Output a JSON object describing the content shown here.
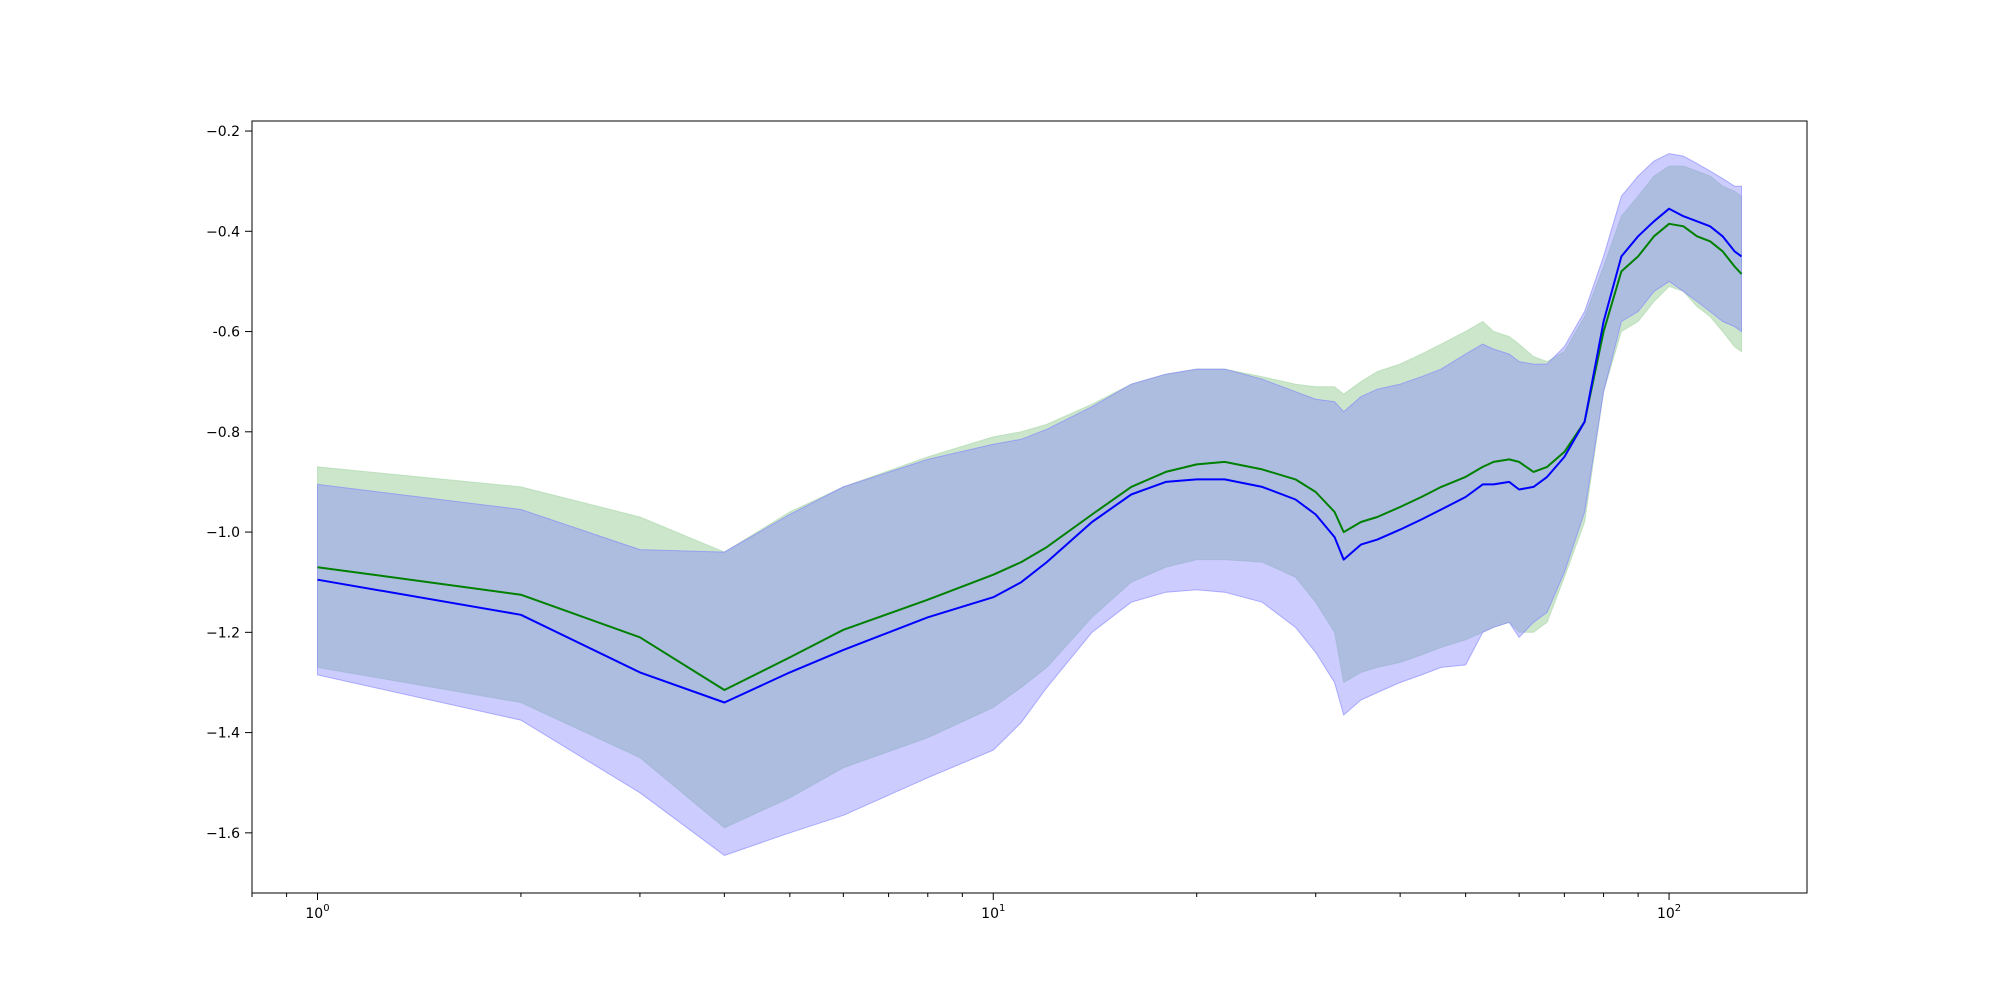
{
  "chart_data": {
    "type": "line",
    "title": "",
    "xlabel": "",
    "ylabel": "",
    "x_scale": "log",
    "xlim": [
      0.8,
      160
    ],
    "ylim": [
      -1.72,
      -0.18
    ],
    "grid": false,
    "x_ticks": [
      {
        "value": 1,
        "base": "10",
        "exp": "0"
      },
      {
        "value": 10,
        "base": "10",
        "exp": "1"
      },
      {
        "value": 100,
        "base": "10",
        "exp": "2"
      }
    ],
    "y_ticks": [
      {
        "value": -0.2,
        "label": "−0.2"
      },
      {
        "value": -0.4,
        "label": "−0.4"
      },
      {
        "value": -0.6,
        "label": "-0.6"
      },
      {
        "value": -0.8,
        "label": "−0.8"
      },
      {
        "value": -1.0,
        "label": "−1.0"
      },
      {
        "value": -1.2,
        "label": "−1.2"
      },
      {
        "value": -1.4,
        "label": "−1.4"
      },
      {
        "value": -1.6,
        "label": "−1.6"
      }
    ],
    "series": [
      {
        "color": "#008000",
        "band_color": "#a9d5a9",
        "band_opacity": 0.6,
        "x": [
          1,
          2,
          3,
          4,
          5,
          6,
          8,
          10,
          11,
          12,
          14,
          16,
          18,
          20,
          22,
          25,
          28,
          30,
          32,
          33,
          35,
          37,
          40,
          43,
          46,
          50,
          53,
          55,
          58,
          60,
          63,
          66,
          70,
          75,
          80,
          85,
          90,
          95,
          100,
          105,
          110,
          115,
          120,
          125,
          128
        ],
        "y": [
          -1.07,
          -1.125,
          -1.21,
          -1.315,
          -1.25,
          -1.195,
          -1.135,
          -1.085,
          -1.06,
          -1.03,
          -0.965,
          -0.91,
          -0.88,
          -0.865,
          -0.86,
          -0.875,
          -0.895,
          -0.92,
          -0.96,
          -1.0,
          -0.98,
          -0.97,
          -0.95,
          -0.93,
          -0.91,
          -0.89,
          -0.87,
          -0.86,
          -0.855,
          -0.86,
          -0.88,
          -0.87,
          -0.84,
          -0.78,
          -0.6,
          -0.48,
          -0.45,
          -0.41,
          -0.385,
          -0.39,
          -0.41,
          -0.42,
          -0.44,
          -0.47,
          -0.485
        ],
        "y_low": [
          -1.27,
          -1.34,
          -1.45,
          -1.59,
          -1.53,
          -1.47,
          -1.41,
          -1.35,
          -1.31,
          -1.27,
          -1.17,
          -1.1,
          -1.07,
          -1.055,
          -1.055,
          -1.06,
          -1.09,
          -1.14,
          -1.2,
          -1.3,
          -1.28,
          -1.27,
          -1.26,
          -1.245,
          -1.23,
          -1.215,
          -1.2,
          -1.19,
          -1.18,
          -1.2,
          -1.2,
          -1.18,
          -1.09,
          -0.98,
          -0.72,
          -0.6,
          -0.58,
          -0.54,
          -0.51,
          -0.52,
          -0.55,
          -0.57,
          -0.6,
          -0.63,
          -0.64
        ],
        "y_high": [
          -0.87,
          -0.91,
          -0.97,
          -1.04,
          -0.96,
          -0.91,
          -0.85,
          -0.81,
          -0.8,
          -0.785,
          -0.745,
          -0.705,
          -0.685,
          -0.675,
          -0.675,
          -0.69,
          -0.705,
          -0.71,
          -0.71,
          -0.725,
          -0.7,
          -0.68,
          -0.665,
          -0.645,
          -0.625,
          -0.6,
          -0.58,
          -0.6,
          -0.61,
          -0.625,
          -0.65,
          -0.66,
          -0.64,
          -0.57,
          -0.47,
          -0.37,
          -0.33,
          -0.29,
          -0.27,
          -0.27,
          -0.28,
          -0.29,
          -0.31,
          -0.32,
          -0.33
        ]
      },
      {
        "color": "#0000ff",
        "band_color": "#8080ff",
        "band_opacity": 0.4,
        "x": [
          1,
          2,
          3,
          4,
          5,
          6,
          8,
          10,
          11,
          12,
          14,
          16,
          18,
          20,
          22,
          25,
          28,
          30,
          32,
          33,
          35,
          37,
          40,
          43,
          46,
          50,
          53,
          55,
          58,
          60,
          63,
          66,
          70,
          75,
          80,
          85,
          90,
          95,
          100,
          105,
          110,
          115,
          120,
          125,
          128
        ],
        "y": [
          -1.095,
          -1.165,
          -1.28,
          -1.34,
          -1.28,
          -1.235,
          -1.17,
          -1.13,
          -1.1,
          -1.06,
          -0.98,
          -0.925,
          -0.9,
          -0.895,
          -0.895,
          -0.91,
          -0.935,
          -0.965,
          -1.01,
          -1.055,
          -1.025,
          -1.015,
          -0.995,
          -0.975,
          -0.955,
          -0.93,
          -0.905,
          -0.905,
          -0.9,
          -0.915,
          -0.91,
          -0.89,
          -0.85,
          -0.78,
          -0.58,
          -0.45,
          -0.41,
          -0.38,
          -0.355,
          -0.37,
          -0.38,
          -0.39,
          -0.41,
          -0.44,
          -0.45
        ],
        "y_low": [
          -1.285,
          -1.375,
          -1.52,
          -1.645,
          -1.6,
          -1.565,
          -1.49,
          -1.435,
          -1.38,
          -1.31,
          -1.2,
          -1.14,
          -1.12,
          -1.115,
          -1.12,
          -1.14,
          -1.19,
          -1.24,
          -1.3,
          -1.365,
          -1.335,
          -1.32,
          -1.3,
          -1.285,
          -1.27,
          -1.265,
          -1.2,
          -1.19,
          -1.18,
          -1.21,
          -1.18,
          -1.16,
          -1.08,
          -0.96,
          -0.72,
          -0.58,
          -0.56,
          -0.52,
          -0.5,
          -0.52,
          -0.54,
          -0.56,
          -0.58,
          -0.59,
          -0.6
        ],
        "y_high": [
          -0.905,
          -0.955,
          -1.035,
          -1.04,
          -0.965,
          -0.91,
          -0.855,
          -0.825,
          -0.815,
          -0.795,
          -0.75,
          -0.705,
          -0.685,
          -0.675,
          -0.675,
          -0.695,
          -0.72,
          -0.735,
          -0.74,
          -0.76,
          -0.73,
          -0.715,
          -0.705,
          -0.69,
          -0.675,
          -0.645,
          -0.625,
          -0.635,
          -0.645,
          -0.66,
          -0.665,
          -0.665,
          -0.63,
          -0.56,
          -0.45,
          -0.33,
          -0.29,
          -0.26,
          -0.245,
          -0.25,
          -0.265,
          -0.28,
          -0.295,
          -0.31,
          -0.31
        ]
      }
    ]
  }
}
